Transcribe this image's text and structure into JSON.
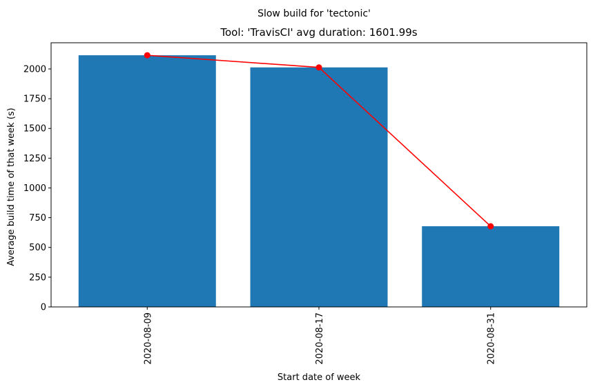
{
  "chart_data": {
    "type": "bar",
    "suptitle": "Slow build for 'tectonic'",
    "title": "Tool: 'TravisCI' avg duration: 1601.99s",
    "xlabel": "Start date of week",
    "ylabel": "Average build time of that week (s)",
    "categories": [
      "2020-08-09",
      "2020-08-17",
      "2020-08-31"
    ],
    "values": [
      2115,
      2013,
      678
    ],
    "line_values": [
      2115,
      2013,
      678
    ],
    "yticks": [
      "0",
      "250",
      "500",
      "750",
      "1000",
      "1250",
      "1500",
      "1750",
      "2000"
    ],
    "ylim": [
      0,
      2220
    ],
    "grid": false,
    "bar_color": "#1f77b4",
    "line_color": "#ff0000"
  }
}
